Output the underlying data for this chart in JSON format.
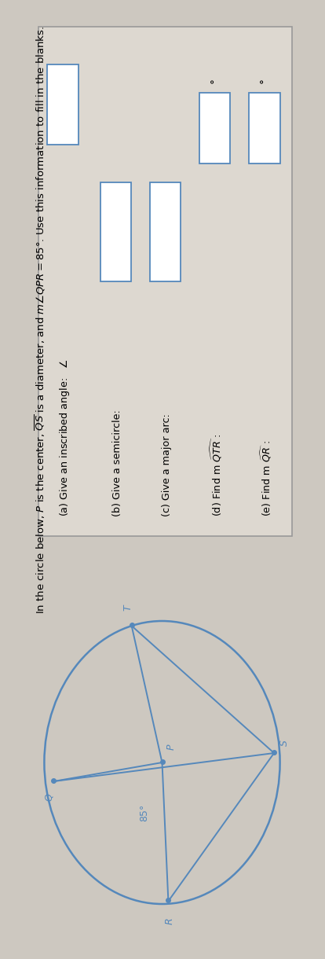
{
  "bg_color": "#cdc8c0",
  "title_line1": "In the circle below, $P$ is the center, $\\overline{QS}$ is a diameter, and $m\\angle QPR=85°$. Use this information to fill in the blanks.",
  "point_color": "#5588bb",
  "line_color": "#5588bb",
  "angle_label": "85°",
  "questions": [
    "(a) Give an inscribed angle:   $\\angle$",
    "(b) Give a semicircle:",
    "(c) Give a major arc:",
    "(d) Find m $\\widehat{QTR}$ :",
    "(e) Find m $\\widehat{QR}$ :"
  ],
  "has_degree": [
    false,
    false,
    false,
    true,
    true
  ]
}
